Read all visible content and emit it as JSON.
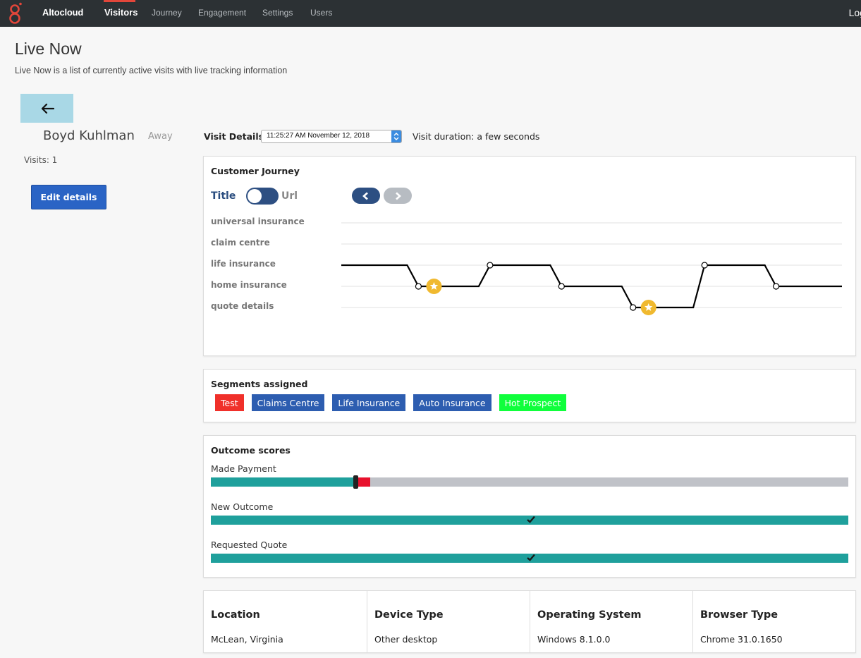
{
  "nav": {
    "brand": "Altocloud",
    "items": [
      {
        "label": "Visitors",
        "active": true
      },
      {
        "label": "Journey"
      },
      {
        "label": "Engagement"
      },
      {
        "label": "Settings"
      },
      {
        "label": "Users"
      }
    ],
    "logout": "Log",
    "colors": {
      "bar": "#2c3134",
      "accent": "#e2463a"
    }
  },
  "page": {
    "title": "Live Now",
    "subtitle": "Live Now is a list of currently active visits with live tracking information"
  },
  "visitor": {
    "name": "Boyd Kuhlman",
    "status": "Away",
    "visits": "Visits: 1",
    "edit_label": "Edit details",
    "back_icon": "arrow-left-icon"
  },
  "visit": {
    "details_label": "Visit Details",
    "selected": "11:25:27 AM November 12, 2018",
    "duration": "Visit duration: a few seconds"
  },
  "journey": {
    "title": "Customer Journey",
    "toggle_left": "Title",
    "toggle_right": "Url",
    "lanes": [
      "universal insurance",
      "claim centre",
      "life insurance",
      "home insurance",
      "quote details"
    ],
    "path": [
      "life insurance",
      "home insurance",
      "life insurance",
      "home insurance",
      "quote details",
      "life insurance",
      "home insurance"
    ],
    "starred_steps": [
      1,
      4
    ],
    "colors": {
      "line": "#000000",
      "star": "#f0b92f",
      "grid": "#e6e6e6"
    }
  },
  "segments": {
    "title": "Segments assigned",
    "tags": [
      {
        "label": "Test",
        "color": "#f0302a"
      },
      {
        "label": "Claims Centre",
        "color": "#2d5db0"
      },
      {
        "label": "Life Insurance",
        "color": "#2d5db0"
      },
      {
        "label": "Auto Insurance",
        "color": "#2d5db0"
      },
      {
        "label": "Hot Prospect",
        "color": "#10ff3c"
      }
    ]
  },
  "outcomes": {
    "title": "Outcome scores",
    "items": [
      {
        "label": "Made Payment",
        "score": 0.225,
        "threshold": 0.25,
        "achieved": false
      },
      {
        "label": "New Outcome",
        "score": 1.0,
        "achieved": true
      },
      {
        "label": "Requested Quote",
        "score": 1.0,
        "achieved": true
      }
    ],
    "colors": {
      "fill": "#1fa09c",
      "track": "#c0c2c8",
      "over": "#e8112d"
    }
  },
  "info": {
    "columns": [
      {
        "title": "Location",
        "value": "McLean, Virginia"
      },
      {
        "title": "Device Type",
        "value": "Other desktop"
      },
      {
        "title": "Operating System",
        "value": "Windows 8.1.0.0"
      },
      {
        "title": "Browser Type",
        "value": "Chrome 31.0.1650"
      }
    ]
  }
}
